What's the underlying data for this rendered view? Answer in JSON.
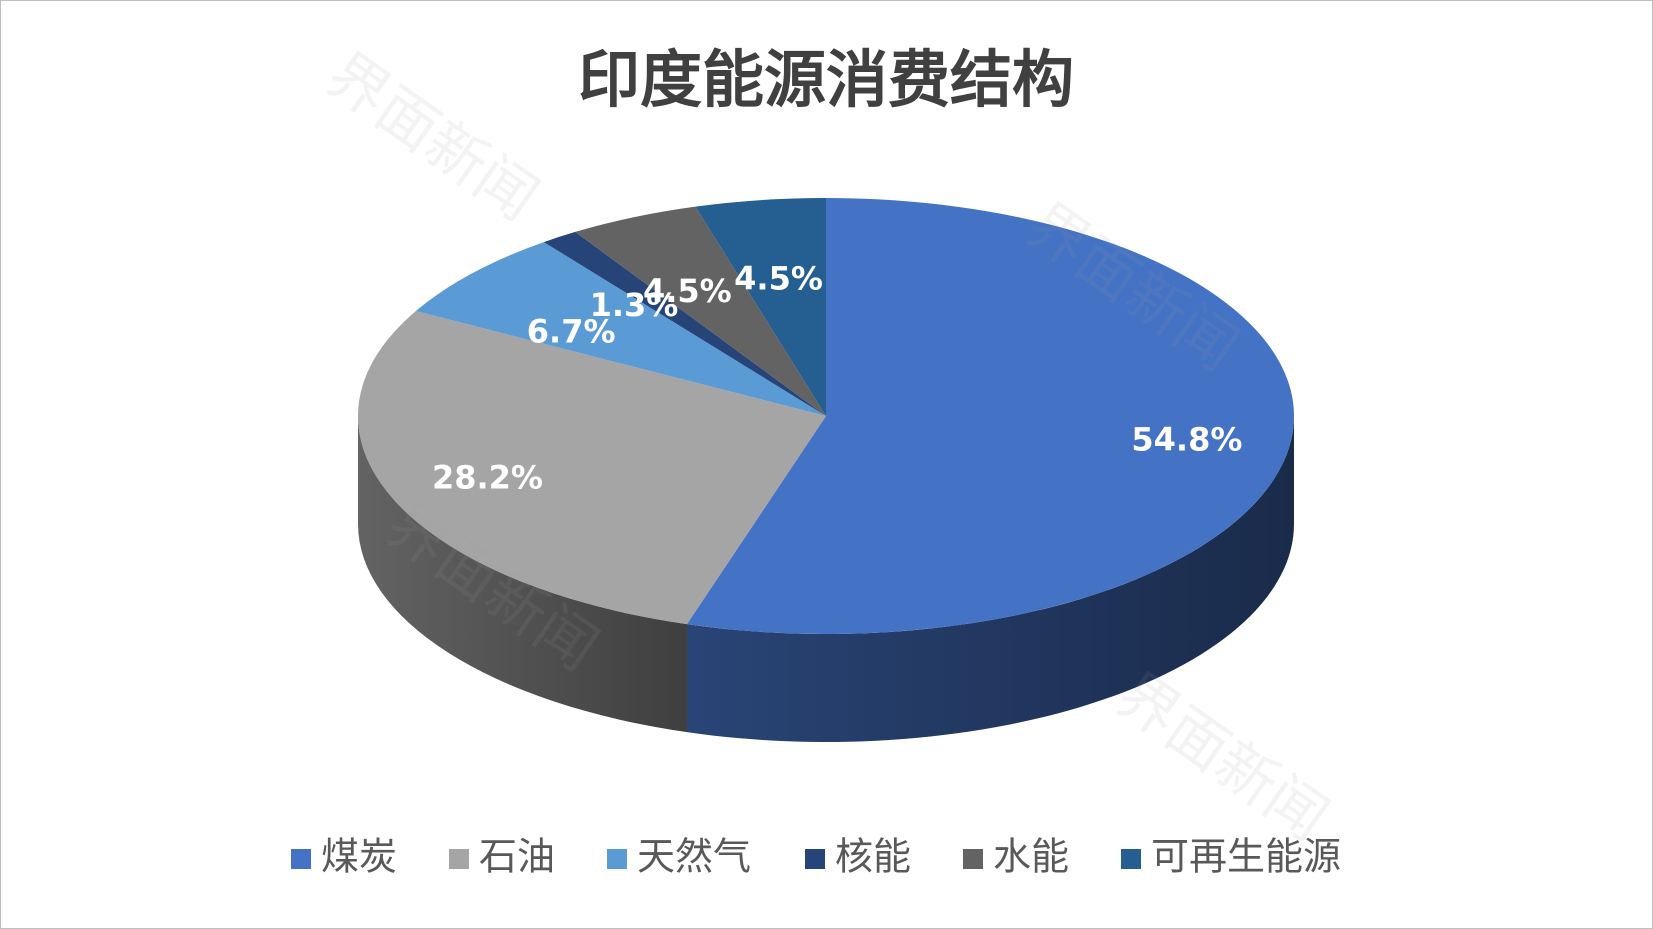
{
  "chart_data": {
    "type": "pie3d",
    "title": "印度能源消费结构",
    "categories": [
      "煤炭",
      "石油",
      "天然气",
      "核能",
      "水能",
      "可再生能源"
    ],
    "values": [
      54.8,
      28.2,
      6.7,
      1.3,
      4.5,
      4.5
    ],
    "value_labels": [
      "54.8%",
      "28.2%",
      "6.7%",
      "1.3%",
      "4.5%",
      "4.5%"
    ],
    "colors": [
      "#4472c4",
      "#a5a5a5",
      "#5b9bd5",
      "#264478",
      "#636363",
      "#255e91"
    ],
    "legend": "bottom"
  },
  "watermark": "界面新闻"
}
